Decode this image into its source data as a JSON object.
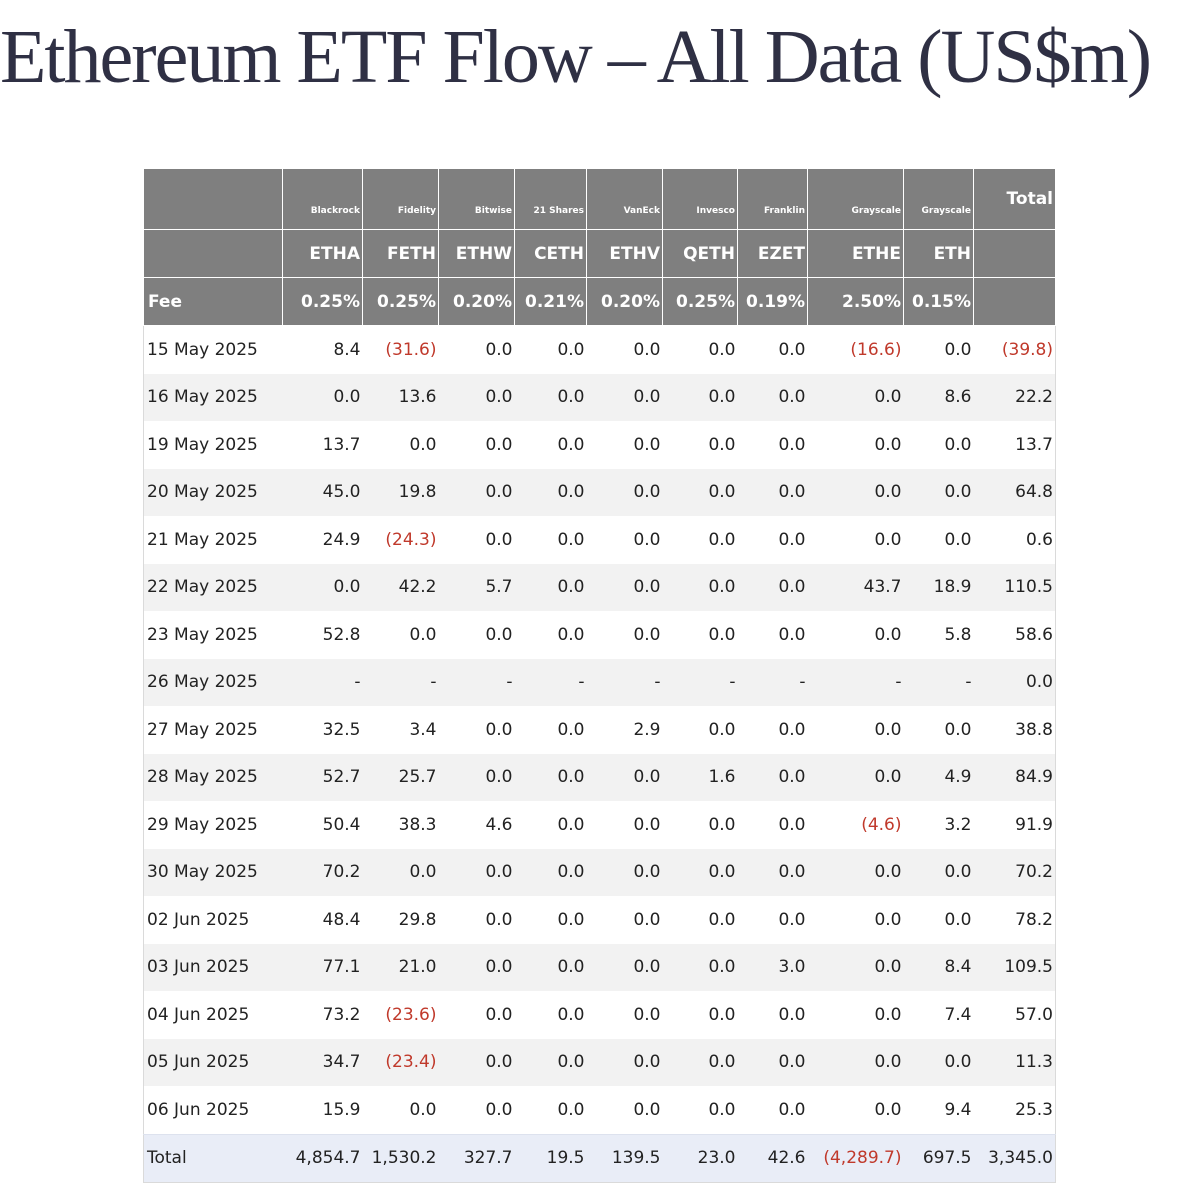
{
  "title": "Ethereum ETF Flow – All Data (US$m)",
  "colors": {
    "header_bg": "#7f7f7f",
    "negative": "#c0392b",
    "total_row_bg": "#e9edf7",
    "stripe": "#f2f2f2"
  },
  "chart_data": {
    "type": "table",
    "title": "Ethereum ETF Flow – All Data (US$m)",
    "columns": [
      {
        "issuer": "Blackrock",
        "ticker": "ETHA",
        "fee": "0.25%"
      },
      {
        "issuer": "Fidelity",
        "ticker": "FETH",
        "fee": "0.25%"
      },
      {
        "issuer": "Bitwise",
        "ticker": "ETHW",
        "fee": "0.20%"
      },
      {
        "issuer": "21 Shares",
        "ticker": "CETH",
        "fee": "0.21%"
      },
      {
        "issuer": "VanEck",
        "ticker": "ETHV",
        "fee": "0.20%"
      },
      {
        "issuer": "Invesco",
        "ticker": "QETH",
        "fee": "0.25%"
      },
      {
        "issuer": "Franklin",
        "ticker": "EZET",
        "fee": "0.19%"
      },
      {
        "issuer": "Grayscale",
        "ticker": "ETHE",
        "fee": "2.50%"
      },
      {
        "issuer": "Grayscale",
        "ticker": "ETH",
        "fee": "0.15%"
      }
    ],
    "total_header": "Total",
    "fee_label": "Fee",
    "rows": [
      {
        "date": "15 May 2025",
        "values": [
          "8.4",
          "(31.6)",
          "0.0",
          "0.0",
          "0.0",
          "0.0",
          "0.0",
          "(16.6)",
          "0.0"
        ],
        "total": "(39.8)"
      },
      {
        "date": "16 May 2025",
        "values": [
          "0.0",
          "13.6",
          "0.0",
          "0.0",
          "0.0",
          "0.0",
          "0.0",
          "0.0",
          "8.6"
        ],
        "total": "22.2"
      },
      {
        "date": "19 May 2025",
        "values": [
          "13.7",
          "0.0",
          "0.0",
          "0.0",
          "0.0",
          "0.0",
          "0.0",
          "0.0",
          "0.0"
        ],
        "total": "13.7"
      },
      {
        "date": "20 May 2025",
        "values": [
          "45.0",
          "19.8",
          "0.0",
          "0.0",
          "0.0",
          "0.0",
          "0.0",
          "0.0",
          "0.0"
        ],
        "total": "64.8"
      },
      {
        "date": "21 May 2025",
        "values": [
          "24.9",
          "(24.3)",
          "0.0",
          "0.0",
          "0.0",
          "0.0",
          "0.0",
          "0.0",
          "0.0"
        ],
        "total": "0.6"
      },
      {
        "date": "22 May 2025",
        "values": [
          "0.0",
          "42.2",
          "5.7",
          "0.0",
          "0.0",
          "0.0",
          "0.0",
          "43.7",
          "18.9"
        ],
        "total": "110.5"
      },
      {
        "date": "23 May 2025",
        "values": [
          "52.8",
          "0.0",
          "0.0",
          "0.0",
          "0.0",
          "0.0",
          "0.0",
          "0.0",
          "5.8"
        ],
        "total": "58.6"
      },
      {
        "date": "26 May 2025",
        "values": [
          "-",
          "-",
          "-",
          "-",
          "-",
          "-",
          "-",
          "-",
          "-"
        ],
        "total": "0.0"
      },
      {
        "date": "27 May 2025",
        "values": [
          "32.5",
          "3.4",
          "0.0",
          "0.0",
          "2.9",
          "0.0",
          "0.0",
          "0.0",
          "0.0"
        ],
        "total": "38.8"
      },
      {
        "date": "28 May 2025",
        "values": [
          "52.7",
          "25.7",
          "0.0",
          "0.0",
          "0.0",
          "1.6",
          "0.0",
          "0.0",
          "4.9"
        ],
        "total": "84.9"
      },
      {
        "date": "29 May 2025",
        "values": [
          "50.4",
          "38.3",
          "4.6",
          "0.0",
          "0.0",
          "0.0",
          "0.0",
          "(4.6)",
          "3.2"
        ],
        "total": "91.9"
      },
      {
        "date": "30 May 2025",
        "values": [
          "70.2",
          "0.0",
          "0.0",
          "0.0",
          "0.0",
          "0.0",
          "0.0",
          "0.0",
          "0.0"
        ],
        "total": "70.2"
      },
      {
        "date": "02 Jun 2025",
        "values": [
          "48.4",
          "29.8",
          "0.0",
          "0.0",
          "0.0",
          "0.0",
          "0.0",
          "0.0",
          "0.0"
        ],
        "total": "78.2"
      },
      {
        "date": "03 Jun 2025",
        "values": [
          "77.1",
          "21.0",
          "0.0",
          "0.0",
          "0.0",
          "0.0",
          "3.0",
          "0.0",
          "8.4"
        ],
        "total": "109.5"
      },
      {
        "date": "04 Jun 2025",
        "values": [
          "73.2",
          "(23.6)",
          "0.0",
          "0.0",
          "0.0",
          "0.0",
          "0.0",
          "0.0",
          "7.4"
        ],
        "total": "57.0"
      },
      {
        "date": "05 Jun 2025",
        "values": [
          "34.7",
          "(23.4)",
          "0.0",
          "0.0",
          "0.0",
          "0.0",
          "0.0",
          "0.0",
          "0.0"
        ],
        "total": "11.3"
      },
      {
        "date": "06 Jun 2025",
        "values": [
          "15.9",
          "0.0",
          "0.0",
          "0.0",
          "0.0",
          "0.0",
          "0.0",
          "0.0",
          "9.4"
        ],
        "total": "25.3"
      }
    ],
    "totals_row": {
      "label": "Total",
      "values": [
        "4,854.7",
        "1,530.2",
        "327.7",
        "19.5",
        "139.5",
        "23.0",
        "42.6",
        "(4,289.7)",
        "697.5"
      ],
      "total": "3,345.0"
    }
  }
}
